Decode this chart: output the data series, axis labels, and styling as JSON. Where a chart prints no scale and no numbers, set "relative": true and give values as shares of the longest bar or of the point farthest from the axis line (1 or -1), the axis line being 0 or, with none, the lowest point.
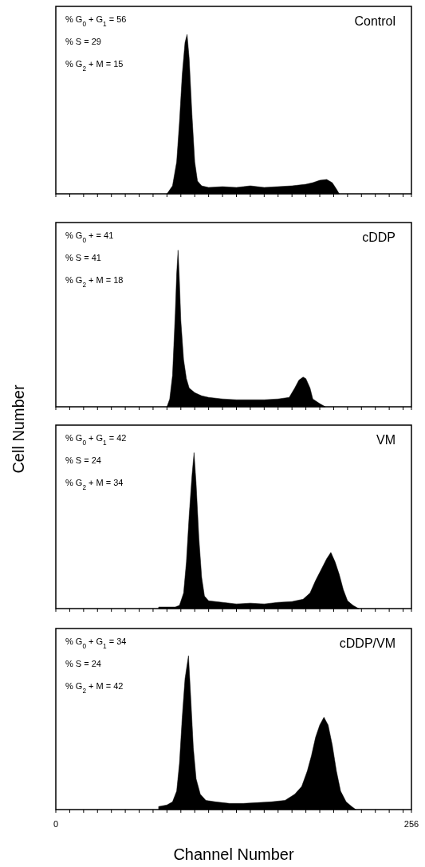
{
  "chart_data": [
    {
      "type": "area",
      "title": "Control",
      "relative": true,
      "tick_labels": false,
      "xlim": [
        0,
        256
      ],
      "xticks": [
        {
          "value": 0,
          "label": null
        },
        {
          "value": 10,
          "label": null
        },
        {
          "value": 20,
          "label": null
        },
        {
          "value": 30,
          "label": null
        },
        {
          "value": 40,
          "label": null
        },
        {
          "value": 50,
          "label": null
        },
        {
          "value": 60,
          "label": null
        },
        {
          "value": 70,
          "label": null
        },
        {
          "value": 80,
          "label": null
        },
        {
          "value": 90,
          "label": null
        },
        {
          "value": 100,
          "label": null
        },
        {
          "value": 110,
          "label": null
        },
        {
          "value": 120,
          "label": null
        },
        {
          "value": 130,
          "label": null
        },
        {
          "value": 140,
          "label": null
        },
        {
          "value": 150,
          "label": null
        },
        {
          "value": 160,
          "label": null
        },
        {
          "value": 170,
          "label": null
        },
        {
          "value": 180,
          "label": null
        },
        {
          "value": 190,
          "label": null
        },
        {
          "value": 200,
          "label": null
        },
        {
          "value": 210,
          "label": null
        },
        {
          "value": 220,
          "label": null
        },
        {
          "value": 230,
          "label": null
        },
        {
          "value": 240,
          "label": null
        },
        {
          "value": 250,
          "label": null
        },
        {
          "value": 256,
          "label": null
        }
      ],
      "annotations": [
        "% G$_{0}$ + G$_{1}$ = 56",
        "% S = 29",
        "% G$_{2}$ + M = 15"
      ],
      "series": [
        {
          "color": "#000000",
          "x": [
            80,
            84,
            87,
            89,
            91,
            93,
            94.5,
            96,
            98,
            100,
            102,
            105,
            110,
            120,
            130,
            140,
            150,
            160,
            170,
            180,
            185,
            190,
            195,
            199,
            202,
            204
          ],
          "values": [
            0,
            0.05,
            0.2,
            0.45,
            0.75,
            0.95,
            1,
            0.85,
            0.5,
            0.2,
            0.08,
            0.05,
            0.04,
            0.045,
            0.04,
            0.05,
            0.04,
            0.045,
            0.05,
            0.06,
            0.07,
            0.085,
            0.09,
            0.07,
            0.03,
            0
          ]
        }
      ]
    },
    {
      "type": "area",
      "title": "cDDP",
      "ylabel": "Cell Number",
      "relative": true,
      "tick_labels": false,
      "xlim": [
        0,
        256
      ],
      "xticks": [
        {
          "value": 0,
          "label": null
        },
        {
          "value": 10,
          "label": null
        },
        {
          "value": 20,
          "label": null
        },
        {
          "value": 30,
          "label": null
        },
        {
          "value": 40,
          "label": null
        },
        {
          "value": 50,
          "label": null
        },
        {
          "value": 60,
          "label": null
        },
        {
          "value": 70,
          "label": null
        },
        {
          "value": 80,
          "label": null
        },
        {
          "value": 90,
          "label": null
        },
        {
          "value": 100,
          "label": null
        },
        {
          "value": 110,
          "label": null
        },
        {
          "value": 120,
          "label": null
        },
        {
          "value": 130,
          "label": null
        },
        {
          "value": 140,
          "label": null
        },
        {
          "value": 150,
          "label": null
        },
        {
          "value": 160,
          "label": null
        },
        {
          "value": 170,
          "label": null
        },
        {
          "value": 180,
          "label": null
        },
        {
          "value": 190,
          "label": null
        },
        {
          "value": 200,
          "label": null
        },
        {
          "value": 210,
          "label": null
        },
        {
          "value": 220,
          "label": null
        },
        {
          "value": 230,
          "label": null
        },
        {
          "value": 240,
          "label": null
        },
        {
          "value": 250,
          "label": null
        },
        {
          "value": 256,
          "label": null
        }
      ],
      "annotations": [
        "% G$_{0}$ + = 41",
        "% S = 41",
        "% G$_{2}$ + M = 18"
      ],
      "series": [
        {
          "color": "#000000",
          "x": [
            80,
            82,
            84,
            86,
            87,
            88,
            89,
            90,
            92,
            94,
            96,
            100,
            105,
            110,
            120,
            130,
            140,
            150,
            160,
            168,
            172,
            175,
            178,
            180,
            183,
            185,
            190,
            194
          ],
          "values": [
            0,
            0.05,
            0.2,
            0.6,
            0.85,
            1,
            0.8,
            0.55,
            0.3,
            0.18,
            0.12,
            0.09,
            0.07,
            0.06,
            0.05,
            0.045,
            0.045,
            0.045,
            0.05,
            0.06,
            0.12,
            0.17,
            0.19,
            0.18,
            0.12,
            0.05,
            0.02,
            0
          ]
        }
      ]
    },
    {
      "type": "area",
      "title": "VM",
      "relative": true,
      "tick_labels": false,
      "xlim": [
        0,
        256
      ],
      "xticks": [
        {
          "value": 0,
          "label": null
        },
        {
          "value": 10,
          "label": null
        },
        {
          "value": 20,
          "label": null
        },
        {
          "value": 30,
          "label": null
        },
        {
          "value": 40,
          "label": null
        },
        {
          "value": 50,
          "label": null
        },
        {
          "value": 60,
          "label": null
        },
        {
          "value": 70,
          "label": null
        },
        {
          "value": 80,
          "label": null
        },
        {
          "value": 90,
          "label": null
        },
        {
          "value": 100,
          "label": null
        },
        {
          "value": 110,
          "label": null
        },
        {
          "value": 120,
          "label": null
        },
        {
          "value": 130,
          "label": null
        },
        {
          "value": 140,
          "label": null
        },
        {
          "value": 150,
          "label": null
        },
        {
          "value": 160,
          "label": null
        },
        {
          "value": 170,
          "label": null
        },
        {
          "value": 180,
          "label": null
        },
        {
          "value": 190,
          "label": null
        },
        {
          "value": 200,
          "label": null
        },
        {
          "value": 210,
          "label": null
        },
        {
          "value": 220,
          "label": null
        },
        {
          "value": 230,
          "label": null
        },
        {
          "value": 240,
          "label": null
        },
        {
          "value": 250,
          "label": null
        },
        {
          "value": 256,
          "label": null
        }
      ],
      "annotations": [
        "% G$_{0}$ + G$_{1}$ = 42",
        "% S = 24",
        "% G$_{2}$ + M = 34"
      ],
      "series": [
        {
          "color": "#000000",
          "x": [
            74,
            80,
            86,
            89,
            92,
            94,
            96,
            98,
            99.5,
            101,
            103,
            105,
            107,
            110,
            120,
            130,
            140,
            150,
            160,
            170,
            178,
            183,
            187,
            191,
            195,
            198,
            201,
            204,
            207,
            210,
            214,
            218
          ],
          "values": [
            0.01,
            0.01,
            0.01,
            0.02,
            0.1,
            0.3,
            0.6,
            0.85,
            1,
            0.8,
            0.45,
            0.2,
            0.08,
            0.05,
            0.04,
            0.03,
            0.035,
            0.03,
            0.04,
            0.045,
            0.06,
            0.1,
            0.18,
            0.25,
            0.32,
            0.36,
            0.3,
            0.22,
            0.12,
            0.05,
            0.02,
            0
          ]
        }
      ]
    },
    {
      "type": "area",
      "title": "cDDP/VM",
      "xlabel": "Channel Number",
      "relative": true,
      "tick_labels": "x",
      "xlim": [
        0,
        256
      ],
      "xticks": [
        {
          "value": 0,
          "label": "0"
        },
        {
          "value": 10,
          "label": null
        },
        {
          "value": 20,
          "label": null
        },
        {
          "value": 30,
          "label": null
        },
        {
          "value": 40,
          "label": null
        },
        {
          "value": 50,
          "label": null
        },
        {
          "value": 60,
          "label": null
        },
        {
          "value": 70,
          "label": null
        },
        {
          "value": 80,
          "label": null
        },
        {
          "value": 90,
          "label": null
        },
        {
          "value": 100,
          "label": null
        },
        {
          "value": 110,
          "label": null
        },
        {
          "value": 120,
          "label": null
        },
        {
          "value": 130,
          "label": null
        },
        {
          "value": 140,
          "label": null
        },
        {
          "value": 150,
          "label": null
        },
        {
          "value": 160,
          "label": null
        },
        {
          "value": 170,
          "label": null
        },
        {
          "value": 180,
          "label": null
        },
        {
          "value": 190,
          "label": null
        },
        {
          "value": 200,
          "label": null
        },
        {
          "value": 210,
          "label": null
        },
        {
          "value": 220,
          "label": null
        },
        {
          "value": 230,
          "label": null
        },
        {
          "value": 240,
          "label": null
        },
        {
          "value": 250,
          "label": null
        },
        {
          "value": 256,
          "label": "256"
        }
      ],
      "annotations": [
        "% G$_{0}$ + G$_{1}$ = 34",
        "% S = 24",
        "% G$_{2}$ + M = 42"
      ],
      "series": [
        {
          "color": "#000000",
          "x": [
            74,
            80,
            84,
            87,
            89,
            91,
            93,
            95.5,
            97,
            99,
            101,
            104,
            108,
            115,
            125,
            135,
            145,
            155,
            165,
            172,
            177,
            181,
            184,
            187,
            190,
            193,
            196,
            199,
            202,
            205,
            209,
            213,
            216
          ],
          "values": [
            0.02,
            0.03,
            0.05,
            0.12,
            0.3,
            0.6,
            0.85,
            1,
            0.75,
            0.4,
            0.2,
            0.1,
            0.06,
            0.05,
            0.04,
            0.04,
            0.045,
            0.05,
            0.06,
            0.1,
            0.15,
            0.25,
            0.35,
            0.47,
            0.55,
            0.6,
            0.55,
            0.42,
            0.25,
            0.12,
            0.05,
            0.02,
            0
          ]
        }
      ]
    }
  ]
}
